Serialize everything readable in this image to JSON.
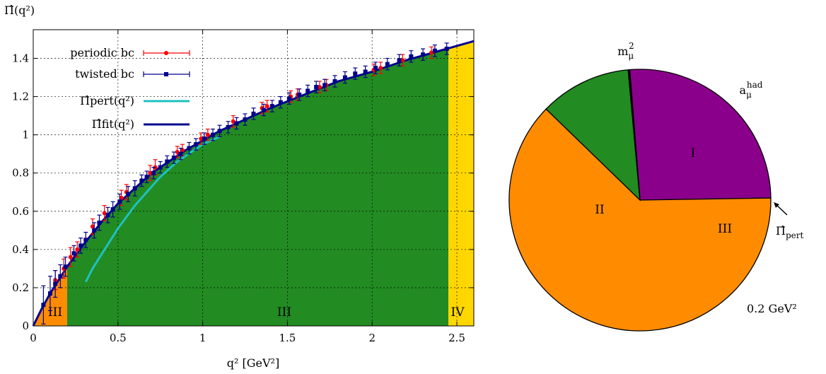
{
  "colors": {
    "region_I": "#8b008b",
    "region_II": "#ff8c00",
    "region_III": "#228b22",
    "region_IV": "#ffd700",
    "periodic": "#ff0000",
    "twisted": "#00008b",
    "pert": "#20c0c0",
    "fit": "#00008b"
  },
  "chart_data": [
    {
      "type": "scatter",
      "ylabel": "Π̂(q²)",
      "xlabel": "q² [GeV²]",
      "xlim": [
        0,
        2.6
      ],
      "ylim": [
        0,
        1.55
      ],
      "x_ticks": [
        0,
        0.5,
        1,
        1.5,
        2,
        2.5
      ],
      "x_tick_labels": [
        "0",
        "0.5",
        "1",
        "1.5",
        "2",
        "2.5"
      ],
      "y_ticks": [
        0,
        0.2,
        0.4,
        0.6,
        0.8,
        1,
        1.2,
        1.4
      ],
      "y_tick_labels": [
        "0",
        "0.2",
        "0.4",
        "0.6",
        "0.8",
        "1",
        "1.2",
        "1.4"
      ],
      "grid": true,
      "legend_position": "top-left",
      "regions": [
        {
          "label": "III",
          "from": 0,
          "to": 0.2,
          "color": "#ff8c00"
        },
        {
          "label": "III",
          "from": 0.2,
          "to": 2.45,
          "color": "#228b22"
        },
        {
          "label": "IV",
          "from": 2.45,
          "to": 2.6,
          "color": "#ffd700"
        }
      ],
      "series": [
        {
          "name": "periodic bc",
          "kind": "points",
          "color": "#ff0000",
          "points": [
            [
              0.13,
              0.24,
              0.05
            ],
            [
              0.18,
              0.3,
              0.05
            ],
            [
              0.22,
              0.36,
              0.05
            ],
            [
              0.26,
              0.4,
              0.04
            ],
            [
              0.35,
              0.52,
              0.04
            ],
            [
              0.42,
              0.59,
              0.04
            ],
            [
              0.52,
              0.67,
              0.04
            ],
            [
              0.55,
              0.7,
              0.04
            ],
            [
              0.69,
              0.8,
              0.04
            ],
            [
              0.72,
              0.83,
              0.04
            ],
            [
              0.85,
              0.91,
              0.03
            ],
            [
              0.88,
              0.92,
              0.03
            ],
            [
              0.99,
              0.98,
              0.03
            ],
            [
              1.03,
              1.0,
              0.03
            ],
            [
              1.18,
              1.07,
              0.03
            ],
            [
              1.35,
              1.14,
              0.03
            ],
            [
              1.38,
              1.15,
              0.03
            ],
            [
              1.52,
              1.2,
              0.03
            ],
            [
              1.56,
              1.21,
              0.03
            ],
            [
              1.69,
              1.25,
              0.03
            ],
            [
              1.73,
              1.26,
              0.03
            ],
            [
              2.01,
              1.34,
              0.03
            ],
            [
              2.05,
              1.35,
              0.03
            ],
            [
              2.18,
              1.39,
              0.03
            ],
            [
              2.35,
              1.43,
              0.03
            ]
          ]
        },
        {
          "name": "twisted bc",
          "kind": "points",
          "color": "#00008b",
          "points": [
            [
              0.06,
              0.11,
              0.1
            ],
            [
              0.1,
              0.17,
              0.09
            ],
            [
              0.13,
              0.22,
              0.07
            ],
            [
              0.16,
              0.26,
              0.06
            ],
            [
              0.19,
              0.31,
              0.05
            ],
            [
              0.24,
              0.38,
              0.04
            ],
            [
              0.28,
              0.42,
              0.04
            ],
            [
              0.31,
              0.45,
              0.04
            ],
            [
              0.36,
              0.5,
              0.04
            ],
            [
              0.39,
              0.54,
              0.04
            ],
            [
              0.44,
              0.58,
              0.04
            ],
            [
              0.47,
              0.61,
              0.04
            ],
            [
              0.51,
              0.65,
              0.04
            ],
            [
              0.56,
              0.69,
              0.04
            ],
            [
              0.6,
              0.72,
              0.04
            ],
            [
              0.64,
              0.76,
              0.03
            ],
            [
              0.67,
              0.78,
              0.03
            ],
            [
              0.71,
              0.8,
              0.03
            ],
            [
              0.75,
              0.83,
              0.03
            ],
            [
              0.79,
              0.86,
              0.03
            ],
            [
              0.83,
              0.88,
              0.03
            ],
            [
              0.87,
              0.9,
              0.03
            ],
            [
              0.92,
              0.93,
              0.03
            ],
            [
              0.96,
              0.95,
              0.03
            ],
            [
              1.01,
              0.98,
              0.03
            ],
            [
              1.06,
              1.0,
              0.03
            ],
            [
              1.1,
              1.02,
              0.03
            ],
            [
              1.15,
              1.04,
              0.03
            ],
            [
              1.2,
              1.06,
              0.03
            ],
            [
              1.25,
              1.08,
              0.03
            ],
            [
              1.3,
              1.11,
              0.03
            ],
            [
              1.36,
              1.13,
              0.03
            ],
            [
              1.41,
              1.15,
              0.03
            ],
            [
              1.46,
              1.17,
              0.03
            ],
            [
              1.51,
              1.19,
              0.03
            ],
            [
              1.57,
              1.21,
              0.03
            ],
            [
              1.62,
              1.23,
              0.03
            ],
            [
              1.67,
              1.25,
              0.03
            ],
            [
              1.72,
              1.26,
              0.03
            ],
            [
              1.78,
              1.28,
              0.03
            ],
            [
              1.84,
              1.3,
              0.03
            ],
            [
              1.9,
              1.32,
              0.03
            ],
            [
              1.96,
              1.33,
              0.03
            ],
            [
              2.02,
              1.35,
              0.03
            ],
            [
              2.09,
              1.37,
              0.03
            ],
            [
              2.16,
              1.39,
              0.03
            ],
            [
              2.23,
              1.41,
              0.03
            ],
            [
              2.3,
              1.42,
              0.03
            ],
            [
              2.37,
              1.44,
              0.03
            ],
            [
              2.44,
              1.45,
              0.03
            ]
          ]
        },
        {
          "name": "Π̂pert(q²)",
          "kind": "line",
          "color": "#20c0c0",
          "x": [
            0.31,
            0.35,
            0.4,
            0.45,
            0.5,
            0.55,
            0.6,
            0.65,
            0.7,
            0.75,
            0.8,
            0.85,
            0.9,
            0.95,
            1.0,
            1.05,
            1.1
          ],
          "y": [
            0.23,
            0.3,
            0.37,
            0.44,
            0.51,
            0.57,
            0.63,
            0.68,
            0.73,
            0.78,
            0.82,
            0.86,
            0.89,
            0.92,
            0.95,
            0.97,
            0.99
          ]
        },
        {
          "name": "Π̂fit(q²)",
          "kind": "line",
          "color": "#00008b",
          "x": [
            0,
            0.05,
            0.1,
            0.15,
            0.2,
            0.3,
            0.4,
            0.5,
            0.6,
            0.7,
            0.8,
            0.9,
            1.0,
            1.1,
            1.2,
            1.4,
            1.6,
            1.8,
            2.0,
            2.2,
            2.4,
            2.6
          ],
          "y": [
            0,
            0.09,
            0.17,
            0.24,
            0.31,
            0.43,
            0.54,
            0.64,
            0.72,
            0.8,
            0.86,
            0.92,
            0.97,
            1.02,
            1.06,
            1.14,
            1.21,
            1.28,
            1.33,
            1.39,
            1.44,
            1.49
          ]
        }
      ],
      "legend": [
        {
          "label": "periodic bc",
          "style": "points-errorbar",
          "color": "#ff0000"
        },
        {
          "label": "twisted bc",
          "style": "points-errorbar",
          "color": "#00008b"
        },
        {
          "label": "Π̂pert(q²)",
          "style": "line",
          "color": "#20c0c0"
        },
        {
          "label": "Π̂fit(q²)",
          "style": "line",
          "color": "#00008b"
        }
      ],
      "region_labels": [
        "III",
        "III",
        "IV"
      ]
    },
    {
      "type": "pie",
      "slices": [
        {
          "label": "I",
          "value": 26.0,
          "color": "#8b008b"
        },
        {
          "label": "II",
          "value": 62.5,
          "color": "#ff8c00"
        },
        {
          "label": "III",
          "value": 11.3,
          "color": "#228b22"
        },
        {
          "label": "",
          "value": 0.2,
          "color": "#000000"
        }
      ],
      "outer_labels": {
        "top": "m²μ",
        "top_right": "a^had_μ",
        "pert": "Π̂pert",
        "bottom_right": "0.2 GeV²"
      }
    }
  ]
}
